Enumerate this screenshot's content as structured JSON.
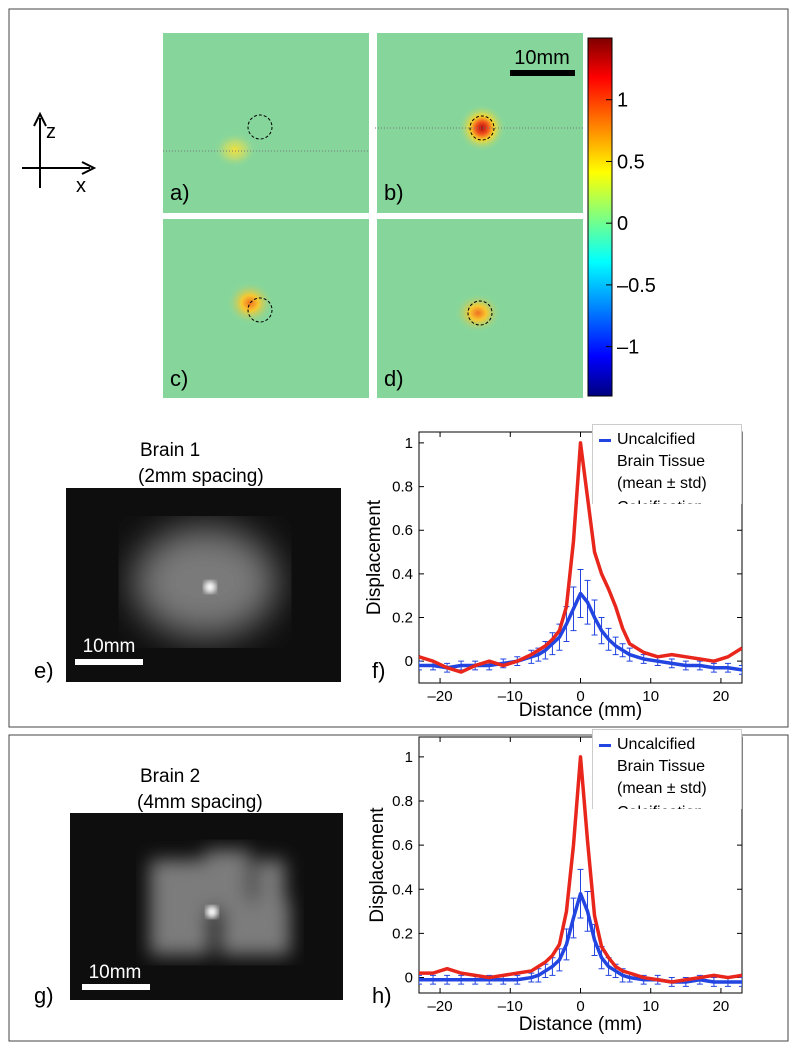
{
  "axes_legend": {
    "z": "z",
    "x": "x"
  },
  "maps": {
    "labels": [
      "a)",
      "b)",
      "c)",
      "d)"
    ],
    "scale_bar": "10mm"
  },
  "colorbar": {
    "clim": [
      -1.4,
      1.5
    ],
    "ticks": [
      1,
      0.5,
      0,
      {
        "value": -0.5,
        "label": "–0.5"
      },
      {
        "value": -1,
        "label": "–1"
      }
    ]
  },
  "photos": [
    {
      "title": "Brain 1",
      "subtitle": "(2mm spacing)",
      "scale_bar": "10mm",
      "label": "e)"
    },
    {
      "title": "Brain 2",
      "subtitle": "(4mm spacing)",
      "scale_bar": "10mm",
      "label": "g)"
    }
  ],
  "chart_data": [
    {
      "type": "line",
      "panel_label": "f)",
      "xlabel": "Distance (mm)",
      "ylabel": "Displacement",
      "xlim": [
        -23,
        23
      ],
      "ylim": [
        -0.1,
        1.05
      ],
      "xticks": [
        {
          "value": -20,
          "label": "–20"
        },
        {
          "value": -10,
          "label": "–10"
        },
        0,
        10,
        20
      ],
      "yticks": [
        0,
        0.2,
        0.4,
        0.6,
        0.8,
        1
      ],
      "x": [
        -23,
        -21,
        -19,
        -17,
        -15,
        -13,
        -11,
        -9,
        -7,
        -6,
        -5,
        -4,
        -3,
        -2,
        -1,
        0,
        1,
        2,
        3,
        4,
        5,
        6,
        7,
        9,
        11,
        13,
        15,
        17,
        19,
        21,
        23
      ],
      "series": [
        {
          "name": "Uncalcified Brain Tissue (mean ± std)",
          "color": "#2244e0",
          "values": [
            -0.02,
            -0.02,
            -0.03,
            -0.02,
            -0.02,
            -0.02,
            -0.01,
            0.0,
            0.02,
            0.03,
            0.05,
            0.08,
            0.11,
            0.17,
            0.24,
            0.31,
            0.27,
            0.2,
            0.14,
            0.1,
            0.07,
            0.05,
            0.03,
            0.01,
            0.0,
            -0.01,
            -0.02,
            -0.02,
            -0.03,
            -0.03,
            -0.04
          ],
          "errors": [
            0.02,
            0.02,
            0.02,
            0.02,
            0.02,
            0.02,
            0.02,
            0.02,
            0.03,
            0.03,
            0.04,
            0.05,
            0.06,
            0.08,
            0.1,
            0.11,
            0.1,
            0.08,
            0.06,
            0.05,
            0.04,
            0.03,
            0.03,
            0.02,
            0.02,
            0.02,
            0.02,
            0.02,
            0.02,
            0.02,
            0.02
          ]
        },
        {
          "name": "Calcification",
          "color": "#e8261c",
          "values": [
            0.02,
            0.0,
            -0.03,
            -0.05,
            -0.02,
            0.0,
            -0.02,
            0.0,
            0.03,
            0.05,
            0.07,
            0.1,
            0.14,
            0.25,
            0.55,
            1.0,
            0.75,
            0.5,
            0.4,
            0.33,
            0.25,
            0.15,
            0.08,
            0.04,
            0.02,
            0.03,
            0.02,
            0.01,
            0.0,
            0.02,
            0.06
          ]
        }
      ]
    },
    {
      "type": "line",
      "panel_label": "h)",
      "xlabel": "Distance (mm)",
      "ylabel": "Displacement",
      "xlim": [
        -23,
        23
      ],
      "ylim": [
        -0.07,
        1.09
      ],
      "xticks": [
        {
          "value": -20,
          "label": "–20"
        },
        {
          "value": -10,
          "label": "–10"
        },
        0,
        10,
        20
      ],
      "yticks": [
        0,
        0.2,
        0.4,
        0.6,
        0.8,
        1
      ],
      "x": [
        -23,
        -21,
        -19,
        -17,
        -15,
        -13,
        -11,
        -9,
        -7,
        -6,
        -5,
        -4,
        -3,
        -2,
        -1,
        0,
        1,
        2,
        3,
        4,
        5,
        6,
        7,
        9,
        11,
        13,
        15,
        17,
        19,
        21,
        23
      ],
      "series": [
        {
          "name": "Uncalcified Brain Tissue (mean ± std)",
          "color": "#2244e0",
          "values": [
            -0.01,
            -0.01,
            -0.01,
            -0.01,
            -0.01,
            -0.01,
            -0.01,
            -0.01,
            0.0,
            0.01,
            0.03,
            0.05,
            0.08,
            0.15,
            0.27,
            0.38,
            0.3,
            0.17,
            0.09,
            0.05,
            0.03,
            0.01,
            0.0,
            -0.01,
            -0.01,
            -0.02,
            -0.02,
            -0.01,
            -0.02,
            -0.02,
            -0.02
          ],
          "errors": [
            0.02,
            0.02,
            0.02,
            0.02,
            0.02,
            0.02,
            0.02,
            0.02,
            0.02,
            0.03,
            0.03,
            0.04,
            0.05,
            0.07,
            0.09,
            0.11,
            0.09,
            0.07,
            0.05,
            0.04,
            0.03,
            0.03,
            0.02,
            0.02,
            0.02,
            0.02,
            0.02,
            0.02,
            0.02,
            0.02,
            0.02
          ]
        },
        {
          "name": "Calcification",
          "color": "#e8261c",
          "values": [
            0.02,
            0.02,
            0.04,
            0.02,
            0.01,
            0.0,
            0.01,
            0.02,
            0.03,
            0.05,
            0.07,
            0.1,
            0.15,
            0.3,
            0.6,
            1.0,
            0.62,
            0.28,
            0.14,
            0.09,
            0.05,
            0.03,
            0.02,
            0.0,
            -0.01,
            -0.02,
            -0.01,
            0.0,
            0.01,
            0.0,
            0.01
          ]
        }
      ]
    }
  ]
}
